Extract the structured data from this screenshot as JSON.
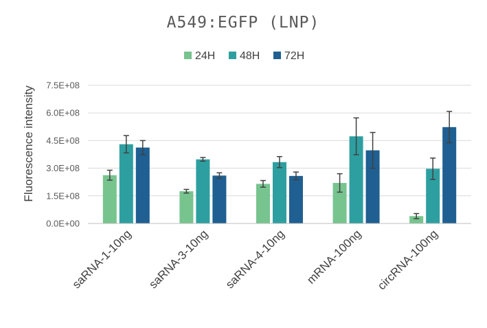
{
  "chart_data": {
    "type": "bar",
    "title": "A549:EGFP (LNP)",
    "ylabel": "Fluorescence intensity",
    "xlabel": "",
    "ylim": [
      0,
      750000000
    ],
    "yticks": [
      0,
      150000000,
      300000000,
      450000000,
      600000000,
      750000000
    ],
    "ytick_labels": [
      "0.0E+00",
      "1.5E+08",
      "3.0E+08",
      "4.5E+08",
      "6.0E+08",
      "7.5E+08"
    ],
    "grid": true,
    "legend_position": "top",
    "categories": [
      "saRNA-1-10ng",
      "saRNA-3-10ng",
      "saRNA-4-10ng",
      "mRNA-100ng",
      "circRNA-100ng"
    ],
    "series": [
      {
        "name": "24H",
        "color": "#77c48f",
        "values": [
          262000000,
          175000000,
          215000000,
          220000000,
          40000000
        ],
        "errors": [
          27000000,
          10000000,
          18000000,
          50000000,
          14000000
        ]
      },
      {
        "name": "48H",
        "color": "#2e9fa0",
        "values": [
          430000000,
          348000000,
          333000000,
          473000000,
          297000000
        ],
        "errors": [
          47000000,
          10000000,
          30000000,
          100000000,
          58000000
        ]
      },
      {
        "name": "72H",
        "color": "#1f5f91",
        "values": [
          412000000,
          260000000,
          258000000,
          397000000,
          523000000
        ],
        "errors": [
          38000000,
          15000000,
          21000000,
          97000000,
          85000000
        ]
      }
    ]
  }
}
